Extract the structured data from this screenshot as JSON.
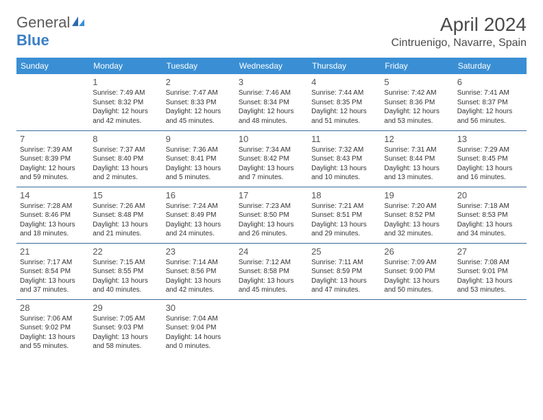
{
  "logo": {
    "text_general": "General",
    "text_blue": "Blue"
  },
  "title": "April 2024",
  "location": "Cintruenigo, Navarre, Spain",
  "colors": {
    "header_bg": "#3a8fd4",
    "header_fg": "#ffffff",
    "row_border": "#3a6a9a",
    "text": "#333333",
    "daynum": "#555555",
    "logo_gray": "#5a5a5a",
    "logo_blue": "#3a7fc4"
  },
  "day_headers": [
    "Sunday",
    "Monday",
    "Tuesday",
    "Wednesday",
    "Thursday",
    "Friday",
    "Saturday"
  ],
  "weeks": [
    [
      null,
      {
        "n": "1",
        "sr": "7:49 AM",
        "ss": "8:32 PM",
        "dl": "12 hours and 42 minutes."
      },
      {
        "n": "2",
        "sr": "7:47 AM",
        "ss": "8:33 PM",
        "dl": "12 hours and 45 minutes."
      },
      {
        "n": "3",
        "sr": "7:46 AM",
        "ss": "8:34 PM",
        "dl": "12 hours and 48 minutes."
      },
      {
        "n": "4",
        "sr": "7:44 AM",
        "ss": "8:35 PM",
        "dl": "12 hours and 51 minutes."
      },
      {
        "n": "5",
        "sr": "7:42 AM",
        "ss": "8:36 PM",
        "dl": "12 hours and 53 minutes."
      },
      {
        "n": "6",
        "sr": "7:41 AM",
        "ss": "8:37 PM",
        "dl": "12 hours and 56 minutes."
      }
    ],
    [
      {
        "n": "7",
        "sr": "7:39 AM",
        "ss": "8:39 PM",
        "dl": "12 hours and 59 minutes."
      },
      {
        "n": "8",
        "sr": "7:37 AM",
        "ss": "8:40 PM",
        "dl": "13 hours and 2 minutes."
      },
      {
        "n": "9",
        "sr": "7:36 AM",
        "ss": "8:41 PM",
        "dl": "13 hours and 5 minutes."
      },
      {
        "n": "10",
        "sr": "7:34 AM",
        "ss": "8:42 PM",
        "dl": "13 hours and 7 minutes."
      },
      {
        "n": "11",
        "sr": "7:32 AM",
        "ss": "8:43 PM",
        "dl": "13 hours and 10 minutes."
      },
      {
        "n": "12",
        "sr": "7:31 AM",
        "ss": "8:44 PM",
        "dl": "13 hours and 13 minutes."
      },
      {
        "n": "13",
        "sr": "7:29 AM",
        "ss": "8:45 PM",
        "dl": "13 hours and 16 minutes."
      }
    ],
    [
      {
        "n": "14",
        "sr": "7:28 AM",
        "ss": "8:46 PM",
        "dl": "13 hours and 18 minutes."
      },
      {
        "n": "15",
        "sr": "7:26 AM",
        "ss": "8:48 PM",
        "dl": "13 hours and 21 minutes."
      },
      {
        "n": "16",
        "sr": "7:24 AM",
        "ss": "8:49 PM",
        "dl": "13 hours and 24 minutes."
      },
      {
        "n": "17",
        "sr": "7:23 AM",
        "ss": "8:50 PM",
        "dl": "13 hours and 26 minutes."
      },
      {
        "n": "18",
        "sr": "7:21 AM",
        "ss": "8:51 PM",
        "dl": "13 hours and 29 minutes."
      },
      {
        "n": "19",
        "sr": "7:20 AM",
        "ss": "8:52 PM",
        "dl": "13 hours and 32 minutes."
      },
      {
        "n": "20",
        "sr": "7:18 AM",
        "ss": "8:53 PM",
        "dl": "13 hours and 34 minutes."
      }
    ],
    [
      {
        "n": "21",
        "sr": "7:17 AM",
        "ss": "8:54 PM",
        "dl": "13 hours and 37 minutes."
      },
      {
        "n": "22",
        "sr": "7:15 AM",
        "ss": "8:55 PM",
        "dl": "13 hours and 40 minutes."
      },
      {
        "n": "23",
        "sr": "7:14 AM",
        "ss": "8:56 PM",
        "dl": "13 hours and 42 minutes."
      },
      {
        "n": "24",
        "sr": "7:12 AM",
        "ss": "8:58 PM",
        "dl": "13 hours and 45 minutes."
      },
      {
        "n": "25",
        "sr": "7:11 AM",
        "ss": "8:59 PM",
        "dl": "13 hours and 47 minutes."
      },
      {
        "n": "26",
        "sr": "7:09 AM",
        "ss": "9:00 PM",
        "dl": "13 hours and 50 minutes."
      },
      {
        "n": "27",
        "sr": "7:08 AM",
        "ss": "9:01 PM",
        "dl": "13 hours and 53 minutes."
      }
    ],
    [
      {
        "n": "28",
        "sr": "7:06 AM",
        "ss": "9:02 PM",
        "dl": "13 hours and 55 minutes."
      },
      {
        "n": "29",
        "sr": "7:05 AM",
        "ss": "9:03 PM",
        "dl": "13 hours and 58 minutes."
      },
      {
        "n": "30",
        "sr": "7:04 AM",
        "ss": "9:04 PM",
        "dl": "14 hours and 0 minutes."
      },
      null,
      null,
      null,
      null
    ]
  ],
  "labels": {
    "sunrise": "Sunrise: ",
    "sunset": "Sunset: ",
    "daylight": "Daylight: "
  }
}
